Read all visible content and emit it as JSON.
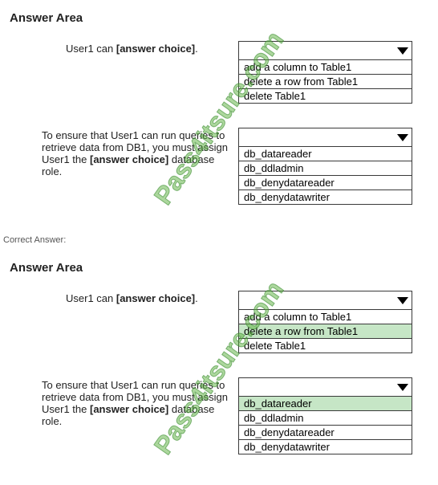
{
  "watermark": "Pass4itsure.com",
  "top": {
    "heading": "Answer Area",
    "q1": {
      "prompt_prefix": "User1 can ",
      "prompt_bold": "[answer choice]",
      "prompt_suffix": ".",
      "options": [
        "add a column to Table1",
        "delete a row from Table1",
        "delete Table1"
      ],
      "selected": null
    },
    "q2": {
      "prompt_prefix": "To ensure that User1 can run queries to retrieve data from DB1, you must assign User1 the ",
      "prompt_bold": "[answer choice]",
      "prompt_suffix": " database role.",
      "options": [
        "db_datareader",
        "db_ddladmin",
        "db_denydatareader",
        "db_denydatawriter"
      ],
      "selected": null
    }
  },
  "correct_label": "Correct Answer:",
  "bottom": {
    "heading": "Answer Area",
    "q1": {
      "prompt_prefix": "User1 can ",
      "prompt_bold": "[answer choice]",
      "prompt_suffix": ".",
      "options": [
        "add a column to Table1",
        "delete a row from Table1",
        "delete Table1"
      ],
      "selected": 1
    },
    "q2": {
      "prompt_prefix": "To ensure that User1 can run queries to retrieve data from DB1, you must assign User1 the ",
      "prompt_bold": "[answer choice]",
      "prompt_suffix": " database role.",
      "options": [
        "db_datareader",
        "db_ddladmin",
        "db_denydatareader",
        "db_denydatawriter"
      ],
      "selected": 0
    }
  }
}
